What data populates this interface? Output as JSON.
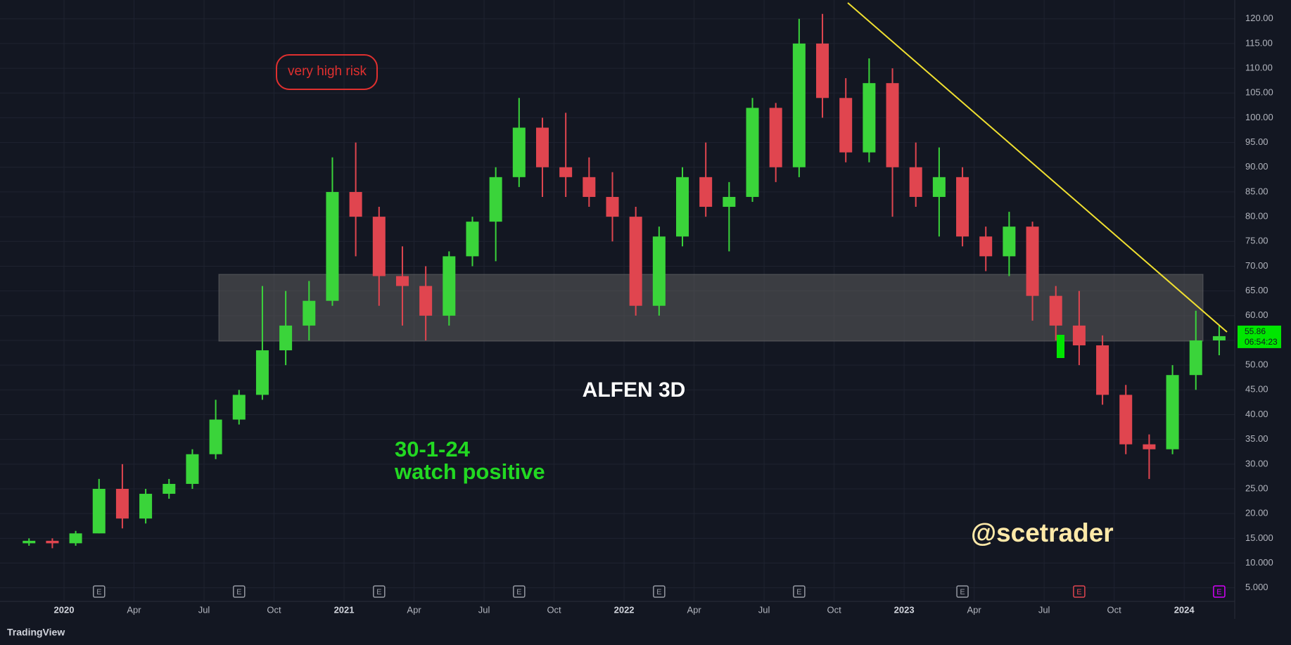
{
  "chart_data": {
    "type": "candlestick",
    "title": "ALFEN 3D",
    "annotations": {
      "risk": "very high risk",
      "date": "30-1-24",
      "note": "watch positive",
      "author": "@scetrader",
      "brand": "TradingView"
    },
    "x": [
      "2019-11",
      "2019-12",
      "2020-01",
      "2020-02",
      "2020-03",
      "2020-04",
      "2020-05",
      "2020-06",
      "2020-07",
      "2020-08",
      "2020-09",
      "2020-10",
      "2020-11",
      "2020-12",
      "2021-01",
      "2021-02",
      "2021-03",
      "2021-04",
      "2021-05",
      "2021-06",
      "2021-07",
      "2021-08",
      "2021-09",
      "2021-10",
      "2021-11",
      "2021-12",
      "2022-01",
      "2022-02",
      "2022-03",
      "2022-04",
      "2022-05",
      "2022-06",
      "2022-07",
      "2022-08",
      "2022-09",
      "2022-10",
      "2022-11",
      "2022-12",
      "2023-01",
      "2023-02",
      "2023-03",
      "2023-04",
      "2023-05",
      "2023-06",
      "2023-07",
      "2023-08",
      "2023-09",
      "2023-10",
      "2023-11",
      "2023-12",
      "2024-01",
      "2024-02"
    ],
    "open": [
      14,
      14.5,
      14,
      16,
      25,
      19,
      24,
      26,
      32,
      39,
      44,
      53,
      58,
      63,
      85,
      80,
      68,
      66,
      60,
      72,
      79,
      88,
      98,
      90,
      88,
      84,
      80,
      62,
      76,
      88,
      82,
      84,
      102,
      90,
      115,
      104,
      93,
      107,
      90,
      84,
      88,
      76,
      72,
      78,
      64,
      58,
      54,
      44,
      34,
      33,
      48,
      55
    ],
    "high": [
      15,
      15,
      16.5,
      27,
      30,
      25,
      27,
      33,
      43,
      45,
      66,
      65,
      67,
      92,
      95,
      82,
      74,
      70,
      73,
      80,
      90,
      104,
      100,
      101,
      92,
      89,
      82,
      78,
      90,
      95,
      87,
      104,
      103,
      120,
      121,
      108,
      112,
      110,
      95,
      94,
      90,
      78,
      81,
      79,
      66,
      65,
      56,
      46,
      36,
      50,
      61,
      58
    ],
    "low": [
      13.5,
      13,
      13.5,
      16,
      17,
      18,
      23,
      25,
      31,
      38,
      43,
      50,
      55,
      62,
      72,
      62,
      58,
      55,
      58,
      70,
      71,
      86,
      84,
      84,
      82,
      75,
      60,
      60,
      74,
      80,
      73,
      83,
      87,
      88,
      100,
      91,
      91,
      80,
      82,
      76,
      74,
      69,
      68,
      59,
      55,
      50,
      42,
      32,
      27,
      32,
      45,
      52
    ],
    "close": [
      14.5,
      14,
      16,
      25,
      19,
      24,
      26,
      32,
      39,
      44,
      53,
      58,
      63,
      85,
      80,
      68,
      66,
      60,
      72,
      79,
      88,
      98,
      90,
      88,
      84,
      80,
      62,
      76,
      88,
      82,
      84,
      102,
      90,
      115,
      104,
      93,
      107,
      90,
      84,
      88,
      76,
      72,
      78,
      64,
      58,
      54,
      44,
      34,
      33,
      48,
      55,
      55.86
    ],
    "up_color": "#3ad43a",
    "down_color": "#e0454f",
    "last_price": 55.86,
    "countdown": "06:54:23",
    "ylim": [
      -1.3,
      123.8
    ],
    "yticks": [
      {
        "value": 120,
        "label": "120.00"
      },
      {
        "value": 115,
        "label": "115.00"
      },
      {
        "value": 110,
        "label": "110.00"
      },
      {
        "value": 105,
        "label": "105.00"
      },
      {
        "value": 100,
        "label": "100.00"
      },
      {
        "value": 95,
        "label": "95.00"
      },
      {
        "value": 90,
        "label": "90.00"
      },
      {
        "value": 85,
        "label": "85.00"
      },
      {
        "value": 80,
        "label": "80.00"
      },
      {
        "value": 75,
        "label": "75.00"
      },
      {
        "value": 70,
        "label": "70.00"
      },
      {
        "value": 65,
        "label": "65.00"
      },
      {
        "value": 60,
        "label": "60.00"
      },
      {
        "value": 55,
        "label": "55.00"
      },
      {
        "value": 50,
        "label": "50.00"
      },
      {
        "value": 45,
        "label": "45.00"
      },
      {
        "value": 40,
        "label": "40.00"
      },
      {
        "value": 35,
        "label": "35.00"
      },
      {
        "value": 30,
        "label": "30.00"
      },
      {
        "value": 25,
        "label": "25.00"
      },
      {
        "value": 20,
        "label": "20.00"
      },
      {
        "value": 15,
        "label": "15.000"
      },
      {
        "value": 10,
        "label": "10.000"
      },
      {
        "value": 5,
        "label": "5.000"
      }
    ],
    "xticks": [
      {
        "value": "2020-01",
        "label": "2020"
      },
      {
        "value": "2020-04",
        "label": "Apr"
      },
      {
        "value": "2020-07",
        "label": "Jul"
      },
      {
        "value": "2020-10",
        "label": "Oct"
      },
      {
        "value": "2021-01",
        "label": "2021"
      },
      {
        "value": "2021-04",
        "label": "Apr"
      },
      {
        "value": "2021-07",
        "label": "Jul"
      },
      {
        "value": "2021-10",
        "label": "Oct"
      },
      {
        "value": "2022-01",
        "label": "2022"
      },
      {
        "value": "2022-04",
        "label": "Apr"
      },
      {
        "value": "2022-07",
        "label": "Jul"
      },
      {
        "value": "2022-10",
        "label": "Oct"
      },
      {
        "value": "2023-01",
        "label": "2023"
      },
      {
        "value": "2023-04",
        "label": "Apr"
      },
      {
        "value": "2023-07",
        "label": "Jul"
      },
      {
        "value": "2023-10",
        "label": "Oct"
      },
      {
        "value": "2024-01",
        "label": "2024"
      }
    ],
    "earnings": [
      {
        "x": "2020-02",
        "label": "E",
        "color": "#9598a1"
      },
      {
        "x": "2020-08",
        "label": "E",
        "color": "#9598a1"
      },
      {
        "x": "2021-02",
        "label": "E",
        "color": "#9598a1"
      },
      {
        "x": "2021-08",
        "label": "E",
        "color": "#9598a1"
      },
      {
        "x": "2022-02",
        "label": "E",
        "color": "#9598a1"
      },
      {
        "x": "2022-08",
        "label": "E",
        "color": "#9598a1"
      },
      {
        "x": "2023-03",
        "label": "E",
        "color": "#9598a1"
      },
      {
        "x": "2023-08",
        "label": "E",
        "color": "#e0454f"
      },
      {
        "x": "2024-02",
        "label": "E",
        "color": "#d500f9"
      }
    ],
    "grid": true
  }
}
